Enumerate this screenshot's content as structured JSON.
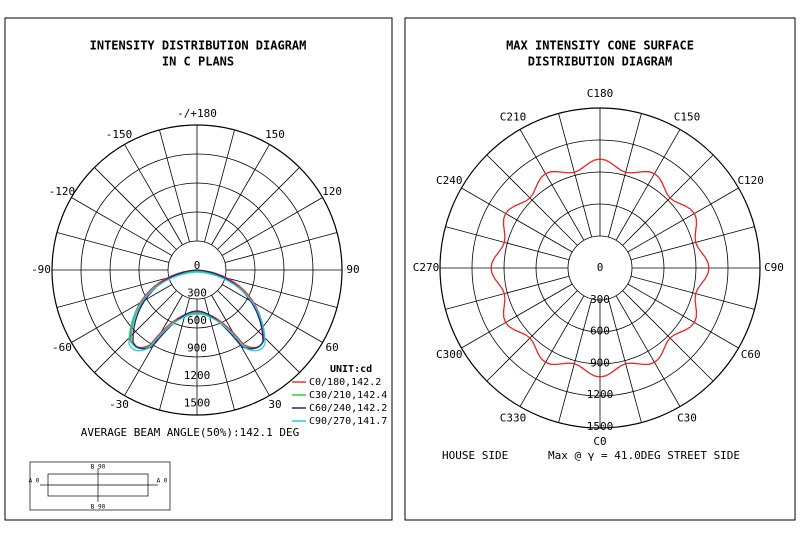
{
  "left_panel": {
    "title": [
      "INTENSITY DISTRIBUTION DIAGRAM",
      "IN C PLANS"
    ],
    "angle_labels": [
      "-/+180",
      "150",
      "120",
      "90",
      "60",
      "30",
      "-30",
      "-60",
      "-90",
      "-120",
      "-150"
    ],
    "ring_labels": [
      "0",
      "300",
      "600",
      "900",
      "1200",
      "1500"
    ],
    "unit": "UNIT:cd",
    "legend": [
      "C0/180,142.2",
      "C30/210,142.4",
      "C60/240,142.2",
      "C90/270,141.7"
    ],
    "footer": "AVERAGE BEAM ANGLE(50%):142.1 DEG",
    "inset_labels": [
      "B 90",
      "A 0",
      "A 0",
      "B 90"
    ]
  },
  "right_panel": {
    "title": [
      "MAX INTENSITY CONE SURFACE",
      "DISTRIBUTION DIAGRAM"
    ],
    "angle_labels": [
      "C0",
      "C30",
      "C60",
      "C90",
      "C120",
      "C150",
      "C180",
      "C210",
      "C240",
      "C270",
      "C300",
      "C330"
    ],
    "ring_labels": [
      "0",
      "300",
      "600",
      "900",
      "1200",
      "1500"
    ],
    "footer_left": "HOUSE SIDE",
    "footer_right": "Max @ γ = 41.0DEG STREET SIDE"
  }
}
